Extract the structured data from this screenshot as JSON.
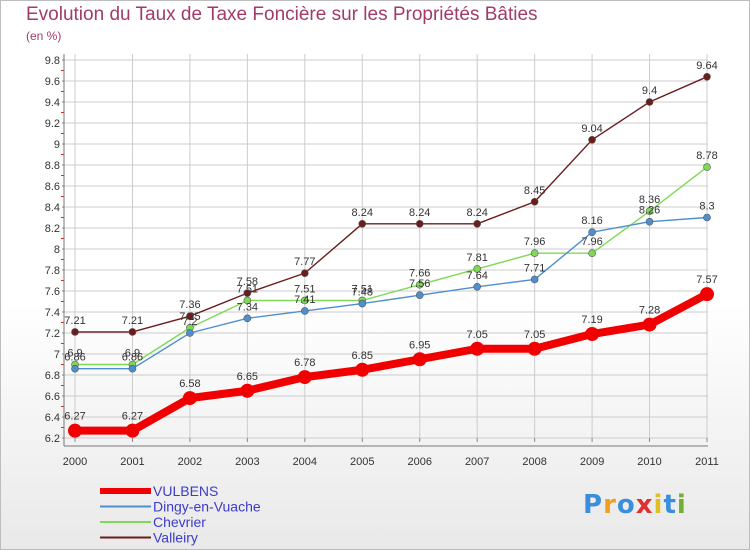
{
  "chart_data": {
    "type": "line",
    "title": "Evolution du Taux de Taxe Foncière sur les Propriétés Bâties",
    "ylabel": "(en %)",
    "categories": [
      "2000",
      "2001",
      "2002",
      "2003",
      "2004",
      "2005",
      "2006",
      "2007",
      "2008",
      "2009",
      "2010",
      "2011"
    ],
    "ylim": [
      6.2,
      9.8
    ],
    "yticks": [
      "6.2",
      "6.4",
      "6.6",
      "6.8",
      "7",
      "7.2",
      "7.4",
      "7.6",
      "7.8",
      "8",
      "8.2",
      "8.4",
      "8.6",
      "8.8",
      "9",
      "9.2",
      "9.4",
      "9.6",
      "9.8"
    ],
    "grid": true,
    "legend_position": "bottom-left",
    "series": [
      {
        "name": "Valleiry",
        "color": "#6b1d1d",
        "values": [
          7.21,
          7.21,
          7.36,
          7.58,
          7.77,
          8.24,
          8.24,
          8.24,
          8.45,
          9.04,
          9.4,
          9.64
        ],
        "labels": [
          "7.21",
          "7.21",
          "7.36",
          "7.58",
          "7.77",
          "8.24",
          "8.24",
          "8.24",
          "8.45",
          "9.04",
          "9.4",
          "9.64"
        ]
      },
      {
        "name": "Chevrier",
        "color": "#7ed957",
        "values": [
          6.9,
          6.9,
          7.25,
          7.51,
          7.51,
          7.51,
          7.66,
          7.81,
          7.96,
          7.96,
          8.36,
          8.78
        ],
        "labels": [
          "6.9",
          "6.9",
          "7.25",
          "7.51",
          "7.51",
          "7.51",
          "7.66",
          "7.81",
          "7.96",
          "7.96",
          "8.36",
          "8.78"
        ]
      },
      {
        "name": "Dingy-en-Vuache",
        "color": "#4f8fcf",
        "values": [
          6.86,
          6.86,
          7.2,
          7.34,
          7.41,
          7.48,
          7.56,
          7.64,
          7.71,
          8.16,
          8.26,
          8.3
        ],
        "labels": [
          "6.86",
          "6.86",
          "7.2",
          "7.34",
          "7.41",
          "7.48",
          "7.56",
          "7.64",
          "7.71",
          "8.16",
          "8.26",
          "8.3"
        ]
      },
      {
        "name": "VULBENS",
        "color": "#f00000",
        "values": [
          6.27,
          6.27,
          6.58,
          6.65,
          6.78,
          6.85,
          6.95,
          7.05,
          7.05,
          7.19,
          7.28,
          7.57
        ],
        "labels": [
          "6.27",
          "6.27",
          "6.58",
          "6.65",
          "6.78",
          "6.85",
          "6.95",
          "7.05",
          "7.05",
          "7.19",
          "7.28",
          "7.57"
        ]
      }
    ],
    "legend": [
      "VULBENS",
      "Dingy-en-Vuache",
      "Chevrier",
      "Valleiry"
    ]
  },
  "logo": {
    "text": "Proxiti",
    "letters": [
      "P",
      "r",
      "o",
      "x",
      "i",
      "t",
      "i"
    ]
  }
}
